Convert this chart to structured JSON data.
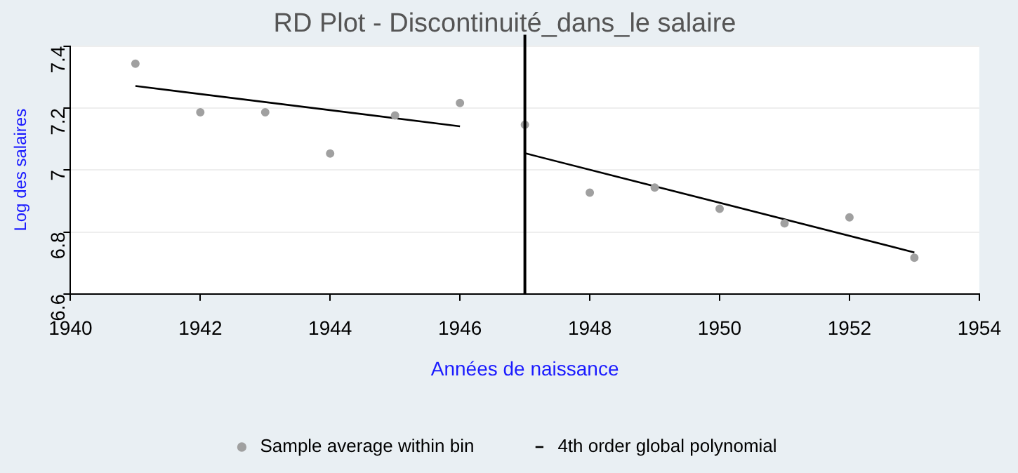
{
  "chart_data": {
    "type": "scatter",
    "title": "RD Plot - Discontinuité_dans_le salaire",
    "xlabel": "Années de naissance",
    "ylabel": "Log des salaires",
    "series": [
      {
        "name": "Sample average within bin",
        "type": "scatter",
        "color": "#a0a0a0",
        "x": [
          1941,
          1942,
          1943,
          1944,
          1945,
          1946,
          1947,
          1948,
          1949,
          1950,
          1951,
          1952,
          1953
        ],
        "values": [
          7.343,
          7.186,
          7.186,
          7.053,
          7.176,
          7.216,
          7.146,
          6.927,
          6.943,
          6.875,
          6.828,
          6.847,
          6.717
        ]
      },
      {
        "name": "4th order global polynomial",
        "type": "line",
        "marker": "none",
        "color": "#000000",
        "x": [
          1941,
          1946
        ],
        "values": [
          7.271,
          7.141
        ]
      },
      {
        "type": "line",
        "marker": "none",
        "color": "#000000",
        "x": [
          1947,
          1953
        ],
        "values": [
          7.054,
          6.734
        ]
      }
    ],
    "xlim": [
      1940,
      1954
    ],
    "xticks": [
      1940,
      1942,
      1944,
      1946,
      1948,
      1950,
      1952,
      1954
    ],
    "ylim": [
      6.6,
      7.4
    ],
    "yticks": [
      6.6,
      6.8,
      7,
      7.2,
      7.4
    ],
    "ref_lines": [
      {
        "axis": "x",
        "value": 1947,
        "color": "#000000"
      }
    ],
    "grid": "y",
    "legend": "bottom",
    "marker": "circle",
    "line_style": "solid"
  }
}
